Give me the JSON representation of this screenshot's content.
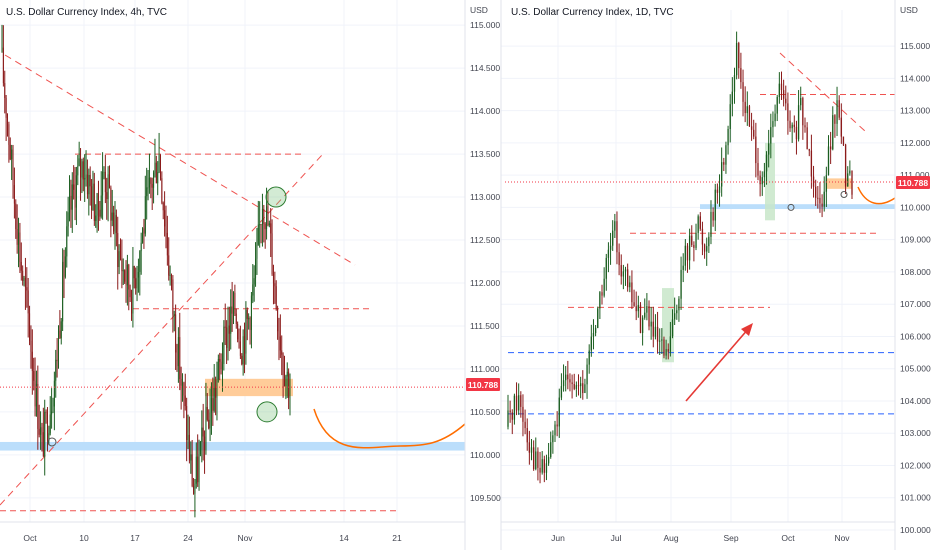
{
  "left_panel": {
    "symbol": "U.S. Dollar Currency Index, 4h, TVC",
    "unit": "USD",
    "price_badge": "110.788",
    "y_ticks": [
      "115.000",
      "114.500",
      "114.000",
      "113.500",
      "113.000",
      "112.500",
      "112.000",
      "111.500",
      "111.000",
      "110.500",
      "110.000",
      "109.500"
    ],
    "x_ticks": [
      "Oct",
      "10",
      "17",
      "24",
      "Nov",
      "14",
      "21"
    ]
  },
  "right_panel": {
    "symbol": "U.S. Dollar Currency Index, 1D, TVC",
    "unit": "USD",
    "price_badge": "110.788",
    "y_ticks": [
      "115.000",
      "114.000",
      "113.000",
      "112.000",
      "111.000",
      "110.000",
      "109.000",
      "108.000",
      "107.000",
      "106.000",
      "105.000",
      "104.000",
      "103.000",
      "102.000",
      "101.000",
      "100.000"
    ],
    "x_ticks": [
      "Jun",
      "Jul",
      "Aug",
      "Sep",
      "Oct",
      "Nov"
    ]
  },
  "colors": {
    "bull": "#1b5e20",
    "bear": "#8b1a1a",
    "accent_red": "#f23645",
    "dashed_red": "#ef5350",
    "dashed_blue": "#2962ff",
    "support_zone": "#bbdefb",
    "highlight_orange": "#ffcc99",
    "curve_orange": "#ff6d00",
    "circle_green": "#81c784",
    "box_green": "#c8e6c9"
  },
  "chart_data": [
    {
      "type": "candlestick",
      "title": "U.S. Dollar Currency Index, 4h, TVC",
      "ylabel": "USD",
      "ylim": [
        109.3,
        115.2
      ],
      "x_ticks": [
        "Oct",
        "10",
        "17",
        "24",
        "Nov",
        "14",
        "21"
      ],
      "last_price": 110.788,
      "path": [
        114.7,
        113.9,
        113.0,
        112.2,
        111.6,
        110.8,
        110.1,
        110.5,
        111.0,
        112.0,
        112.8,
        113.2,
        113.4,
        113.1,
        112.8,
        113.3,
        112.9,
        112.4,
        112.1,
        111.9,
        112.3,
        112.8,
        113.2,
        113.5,
        112.6,
        111.7,
        111.0,
        110.3,
        109.6,
        110.0,
        110.4,
        110.7,
        111.1,
        111.5,
        111.7,
        111.3,
        111.6,
        112.1,
        113.0,
        112.6,
        111.8,
        111.1,
        110.8
      ],
      "annotations": {
        "resistance_levels": [
          113.5,
          111.7,
          109.35
        ],
        "support_zone": [
          110.05,
          110.15
        ],
        "highlight_zone": [
          110.73,
          110.85
        ],
        "circles_at": [
          113.0,
          110.5
        ]
      }
    },
    {
      "type": "candlestick",
      "title": "U.S. Dollar Currency Index, 1D, TVC",
      "ylabel": "USD",
      "ylim": [
        100.0,
        115.5
      ],
      "x_ticks": [
        "Jun",
        "Jul",
        "Aug",
        "Sep",
        "Oct",
        "Nov"
      ],
      "last_price": 110.788,
      "path": [
        103.2,
        103.8,
        104.1,
        103.3,
        102.5,
        101.9,
        101.8,
        102.6,
        103.4,
        104.5,
        105.0,
        104.4,
        104.1,
        105.6,
        106.5,
        107.5,
        108.5,
        109.2,
        108.2,
        107.5,
        107.0,
        106.5,
        106.8,
        106.0,
        105.6,
        105.3,
        106.2,
        107.5,
        108.5,
        109.0,
        109.5,
        108.7,
        109.8,
        110.5,
        111.5,
        113.3,
        114.7,
        113.5,
        112.5,
        111.8,
        110.5,
        111.8,
        113.0,
        113.8,
        112.5,
        112.2,
        113.0,
        112.0,
        111.0,
        110.0,
        111.3,
        112.5,
        113.1,
        111.0,
        110.8
      ],
      "annotations": {
        "resistance_levels": [
          113.5,
          109.2,
          106.9
        ],
        "support_levels": [
          105.5,
          103.6
        ],
        "support_zone": [
          109.95,
          110.1
        ],
        "highlight_zone": [
          110.7,
          110.9
        ]
      }
    }
  ]
}
